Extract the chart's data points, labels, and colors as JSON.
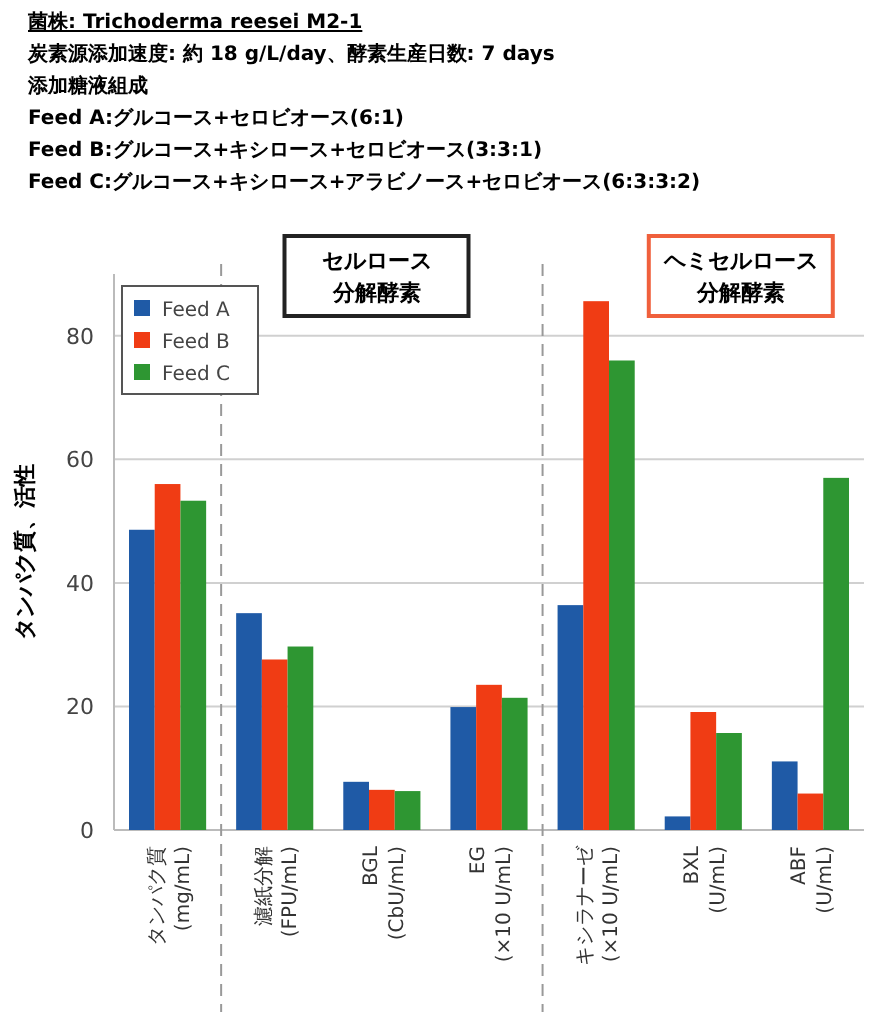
{
  "chart_data": {
    "type": "bar",
    "title": "菌株: Trichoderma reesei M2-1",
    "subtitle": "炭素源添加速度: 約 18 g/L/day、酵素生産日数: 7 days",
    "annotations": [
      "添加糖液組成",
      "Feed A:グルコース+セロビオース(6:1)",
      "Feed B:グルコース+キシロース+セロビオース(3:3:1)",
      "Feed C:グルコース+キシロース+アラビノース+セロビオース(6:3:3:2)",
      "セルロース",
      "分解酵素",
      "ヘミセルロース",
      "分解酵素"
    ],
    "ylabel": "タンパク質、活性",
    "categories": [
      "タンパク質\n(mg/mL)",
      "濾紙分解\n(FPU/mL)",
      "BGL\n(CbU/mL)",
      "EG\n(×10 U/mL)",
      "キシラナーゼ\n(×10 U/mL)",
      "BXL\n(U/mL)",
      "ABF\n(U/mL)"
    ],
    "series": [
      {
        "name": "Feed A",
        "color": "#1f5aa6",
        "values": [
          48.6,
          35.1,
          7.8,
          19.9,
          36.4,
          2.2,
          11.1
        ]
      },
      {
        "name": "Feed B",
        "color": "#f03c14",
        "values": [
          56,
          27.6,
          6.5,
          23.5,
          85.6,
          19.1,
          5.9
        ]
      },
      {
        "name": "Feed C",
        "color": "#2e9632",
        "values": [
          53.3,
          29.7,
          6.3,
          21.4,
          76,
          15.7,
          57
        ]
      }
    ],
    "ylim": [
      0,
      90
    ],
    "yticks": [
      0,
      20,
      40,
      60,
      80
    ],
    "grid": "y",
    "legend": "top left"
  }
}
